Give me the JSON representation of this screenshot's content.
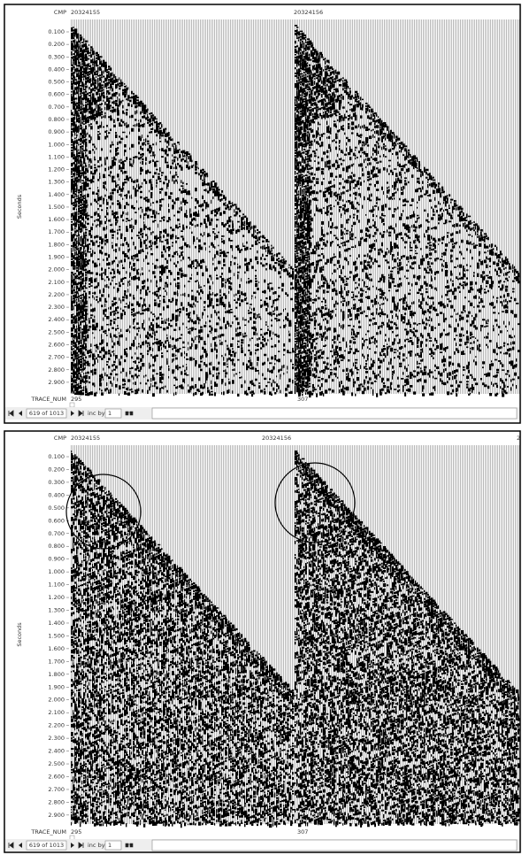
{
  "panels": [
    {
      "cmp_label": "CMP",
      "cmp_values": [
        "20324155",
        "20324156"
      ],
      "time_labels": [
        "0.100",
        "0.200",
        "0.300",
        "0.400",
        "0.500",
        "0.600",
        "0.700",
        "0.800",
        "0.900",
        "1.000",
        "1.100",
        "1.200",
        "1.300",
        "1.400",
        "1.500",
        "1.600",
        "1.700",
        "1.800",
        "1.900",
        "2.000",
        "2.100",
        "2.200",
        "2.300",
        "2.400",
        "2.500",
        "2.600",
        "2.700",
        "2.800",
        "2.900"
      ],
      "axis_label": "Seconds",
      "trace_label": "TRACE_NUM",
      "trace_values": [
        "295",
        "307"
      ],
      "toolbar": {
        "record": "619 of 1013",
        "inc_label": "inc by",
        "inc_value": "1"
      }
    },
    {
      "cmp_label": "CMP",
      "cmp_values": [
        "20324155",
        "20324156",
        "2"
      ],
      "time_labels": [
        "0.100",
        "0.200",
        "0.300",
        "0.400",
        "0.500",
        "0.600",
        "0.700",
        "0.800",
        "0.900",
        "1.000",
        "1.100",
        "1.200",
        "1.300",
        "1.400",
        "1.500",
        "1.600",
        "1.700",
        "1.800",
        "1.900",
        "2.000",
        "2.100",
        "2.200",
        "2.300",
        "2.400",
        "2.500",
        "2.600",
        "2.700",
        "2.800",
        "2.900"
      ],
      "axis_label": "Seconds",
      "trace_label": "TRACE_NUM",
      "trace_values": [
        "295",
        "307"
      ],
      "toolbar": {
        "record": "619 of 1013",
        "inc_label": "inc by",
        "inc_value": "1"
      }
    }
  ]
}
